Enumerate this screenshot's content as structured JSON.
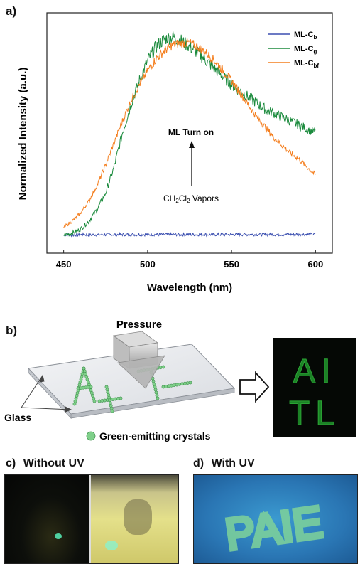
{
  "chart_data": {
    "type": "line",
    "panel_label": "a)",
    "xlabel": "Wavelength (nm)",
    "ylabel": "Normalized Intensity (a.u.)",
    "xlim": [
      440,
      610
    ],
    "ylim": [
      -0.08,
      1.12
    ],
    "x_ticks": [
      450,
      500,
      550,
      600
    ],
    "x_tick_labels": [
      "450",
      "500",
      "550",
      "600"
    ],
    "legend_placement": "top-right",
    "grid": false,
    "annotations": {
      "turn_on": "ML Turn on",
      "vapor_prefix": "CH",
      "vapor_sub1": "2",
      "vapor_mid": "Cl",
      "vapor_sub2": "2",
      "vapor_suffix": " Vapors"
    },
    "series": [
      {
        "name": "ML-Cb",
        "legend_main": "ML-C",
        "legend_sub": "b",
        "color": "#3b4fb0",
        "x": [
          450,
          460,
          470,
          480,
          490,
          500,
          510,
          520,
          530,
          540,
          550,
          560,
          570,
          580,
          590,
          600
        ],
        "y": [
          0.01,
          0.012,
          0.012,
          0.013,
          0.013,
          0.013,
          0.013,
          0.013,
          0.013,
          0.013,
          0.013,
          0.013,
          0.013,
          0.013,
          0.014,
          0.014
        ]
      },
      {
        "name": "ML-Cg",
        "legend_main": "ML-C",
        "legend_sub": "g",
        "color": "#1a8a3c",
        "x": [
          450,
          455,
          460,
          465,
          470,
          475,
          480,
          485,
          490,
          495,
          500,
          505,
          510,
          515,
          520,
          525,
          530,
          535,
          540,
          545,
          550,
          555,
          560,
          565,
          570,
          575,
          580,
          585,
          590,
          595,
          600
        ],
        "y": [
          0.01,
          0.02,
          0.04,
          0.08,
          0.14,
          0.22,
          0.35,
          0.52,
          0.66,
          0.78,
          0.88,
          0.95,
          0.99,
          1.0,
          0.98,
          0.95,
          0.92,
          0.88,
          0.84,
          0.8,
          0.76,
          0.73,
          0.7,
          0.67,
          0.64,
          0.62,
          0.6,
          0.58,
          0.56,
          0.54,
          0.52
        ]
      },
      {
        "name": "ML-Cbf",
        "legend_main": "ML-C",
        "legend_sub": "bf",
        "color": "#f47e1e",
        "x": [
          450,
          455,
          460,
          465,
          470,
          475,
          480,
          485,
          490,
          495,
          500,
          505,
          510,
          515,
          520,
          525,
          530,
          535,
          540,
          545,
          550,
          555,
          560,
          565,
          570,
          575,
          580,
          585,
          590,
          595,
          600
        ],
        "y": [
          0.05,
          0.08,
          0.12,
          0.18,
          0.26,
          0.36,
          0.47,
          0.58,
          0.68,
          0.76,
          0.83,
          0.89,
          0.93,
          0.96,
          0.97,
          0.97,
          0.95,
          0.92,
          0.88,
          0.83,
          0.78,
          0.72,
          0.66,
          0.6,
          0.55,
          0.5,
          0.46,
          0.42,
          0.39,
          0.35,
          0.31
        ]
      }
    ]
  },
  "panel_b": {
    "label": "b)",
    "pressure": "Pressure",
    "glass": "Glass",
    "crystals": "Green-emitting crystals",
    "result_text_top": "AI",
    "result_text_bottom": "TL"
  },
  "panel_c": {
    "label": "c)",
    "title": "Without UV"
  },
  "panel_d": {
    "label": "d)",
    "title": "With UV",
    "photo_text": "PAIE"
  }
}
